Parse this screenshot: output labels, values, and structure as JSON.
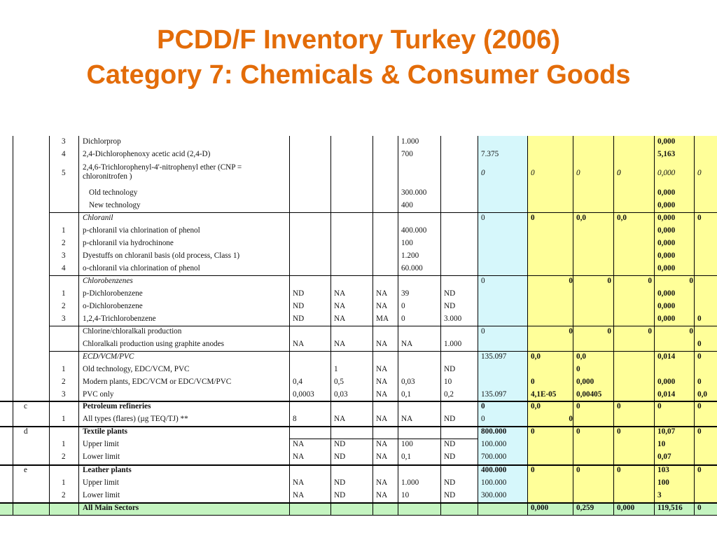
{
  "title_line1": "PCDD/F Inventory Turkey (2006)",
  "title_line2": "Category 7: Chemicals & Consumer Goods",
  "colors": {
    "title": "#E36C09",
    "cyan": "#D6F7FB",
    "yellow": "#FFFF99",
    "green": "#C4F4C0"
  },
  "rows": [
    [
      {
        "c": "sub",
        "t": "3"
      },
      {
        "c": "name",
        "t": "Dichlorprop"
      },
      {
        "c": "p4",
        "t": "1.000"
      },
      {
        "c": "e4",
        "t": "0,000",
        "b": 1
      }
    ],
    [
      {
        "c": "sub",
        "t": "4"
      },
      {
        "c": "name",
        "t": "2,4-Dichlorophenoxy acetic acid  (2,4-D)"
      },
      {
        "c": "p4",
        "t": "700"
      },
      {
        "c": "total",
        "t": "7.375"
      },
      {
        "c": "e4",
        "t": "5,163",
        "b": 1
      }
    ],
    [
      {
        "c": "sub",
        "t": "5"
      },
      {
        "c": "name",
        "t": "2,4,6-Trichlorophenyl-4'-nitrophenyl ether (CNP = chloronitrofen )",
        "wrap": 1
      },
      {
        "c": "total",
        "t": "0",
        "i": 1
      },
      {
        "c": "e1",
        "t": "0",
        "i": 1
      },
      {
        "c": "e2",
        "t": "0",
        "i": 1
      },
      {
        "c": "e3",
        "t": "0",
        "i": 1
      },
      {
        "c": "e3b",
        "t": "0",
        "i": 1
      },
      {
        "c": "e4",
        "t": "0,000",
        "i": 1
      },
      {
        "c": "e5",
        "t": "0",
        "i": 1
      }
    ],
    [
      {
        "c": "name",
        "t": "   Old technology",
        "indent": 1
      },
      {
        "c": "p4",
        "t": "300.000"
      },
      {
        "c": "e4",
        "t": "0,000",
        "b": 1
      }
    ],
    [
      {
        "c": "name",
        "t": "   New technology",
        "indent": 1
      },
      {
        "c": "p4",
        "t": "400"
      },
      {
        "c": "e4",
        "t": "0,000",
        "b": 1
      }
    ],
    [
      {
        "c": "name",
        "t": "Chloranil",
        "i": 1
      },
      {
        "c": "total",
        "t": "0"
      },
      {
        "c": "e1",
        "t": "0",
        "b": 1
      },
      {
        "c": "e2",
        "t": "0,0",
        "b": 1
      },
      {
        "c": "e3",
        "t": "0,0",
        "b": 1
      },
      {
        "c": "e4",
        "t": "0,000",
        "b": 1
      },
      {
        "c": "e5",
        "t": "0",
        "b": 1
      }
    ],
    [
      {
        "c": "sub",
        "t": "1"
      },
      {
        "c": "name",
        "t": "p-chloranil via chlorination of phenol"
      },
      {
        "c": "p4",
        "t": "400.000"
      },
      {
        "c": "e4",
        "t": "0,000",
        "b": 1
      }
    ],
    [
      {
        "c": "sub",
        "t": "2"
      },
      {
        "c": "name",
        "t": "p-chloranil via hydrochinone"
      },
      {
        "c": "p4",
        "t": "100"
      },
      {
        "c": "e4",
        "t": "0,000",
        "b": 1
      }
    ],
    [
      {
        "c": "sub",
        "t": "3"
      },
      {
        "c": "name",
        "t": "Dyestuffs on chloranil basis (old process, Class 1)"
      },
      {
        "c": "p4",
        "t": "1.200"
      },
      {
        "c": "e4",
        "t": "0,000",
        "b": 1
      }
    ],
    [
      {
        "c": "sub",
        "t": "4"
      },
      {
        "c": "name",
        "t": "o-chloranil via chlorination of phenol"
      },
      {
        "c": "p4",
        "t": "60.000"
      },
      {
        "c": "e4",
        "t": "0,000",
        "b": 1
      }
    ],
    [
      {
        "c": "name",
        "t": "Chlorobenzenes",
        "i": 1
      },
      {
        "c": "total",
        "t": "0"
      },
      {
        "c": "e1r",
        "t": "0",
        "b": 1
      },
      {
        "c": "e2r",
        "t": "0",
        "b": 1
      },
      {
        "c": "e3r",
        "t": "0",
        "b": 1
      },
      {
        "c": "e4r",
        "t": "0",
        "b": 1
      }
    ],
    [
      {
        "c": "sub",
        "t": "1"
      },
      {
        "c": "name",
        "t": "p-Dichlorobenzene"
      },
      {
        "c": "p1",
        "t": "ND"
      },
      {
        "c": "p2",
        "t": "NA"
      },
      {
        "c": "p3",
        "t": "NA"
      },
      {
        "c": "p4",
        "t": "39"
      },
      {
        "c": "p5",
        "t": "ND"
      },
      {
        "c": "e4",
        "t": "0,000",
        "b": 1
      }
    ],
    [
      {
        "c": "sub",
        "t": "2"
      },
      {
        "c": "name",
        "t": "o-Dichlorobenzene"
      },
      {
        "c": "p1",
        "t": "ND"
      },
      {
        "c": "p2",
        "t": "NA"
      },
      {
        "c": "p3",
        "t": "NA"
      },
      {
        "c": "p4",
        "t": "0"
      },
      {
        "c": "p5",
        "t": "ND"
      },
      {
        "c": "e4",
        "t": "0,000",
        "b": 1
      }
    ],
    [
      {
        "c": "sub",
        "t": "3"
      },
      {
        "c": "name",
        "t": "1,2,4-Trichlorobenzene"
      },
      {
        "c": "p1",
        "t": "ND"
      },
      {
        "c": "p2",
        "t": "NA"
      },
      {
        "c": "p3",
        "t": "MA"
      },
      {
        "c": "p4",
        "t": "0"
      },
      {
        "c": "p5",
        "t": "3.000"
      },
      {
        "c": "e4",
        "t": "0,000",
        "b": 1
      },
      {
        "c": "e5",
        "t": "0",
        "b": 1
      }
    ],
    [
      {
        "c": "name",
        "t": "Chlorine/chloralkali production"
      },
      {
        "c": "total",
        "t": "0"
      },
      {
        "c": "e1r",
        "t": "0",
        "b": 1
      },
      {
        "c": "e2r",
        "t": "0",
        "b": 1
      },
      {
        "c": "e3r",
        "t": "0",
        "b": 1
      },
      {
        "c": "e4r",
        "t": "0",
        "b": 1
      }
    ],
    [
      {
        "c": "name",
        "t": "Chloralkali production using graphite anodes"
      },
      {
        "c": "p1",
        "t": "NA"
      },
      {
        "c": "p2",
        "t": "NA"
      },
      {
        "c": "p3",
        "t": "NA"
      },
      {
        "c": "p4",
        "t": "NA"
      },
      {
        "c": "p5",
        "t": "1.000"
      },
      {
        "c": "e5",
        "t": "0",
        "b": 1
      }
    ],
    [
      {
        "c": "name",
        "t": "ECD/VCM/PVC",
        "i": 1
      },
      {
        "c": "total",
        "t": "135.097"
      },
      {
        "c": "e1",
        "t": "0,0",
        "b": 1
      },
      {
        "c": "e2",
        "t": "0,0",
        "b": 1
      },
      {
        "c": "e4",
        "t": "0,014",
        "b": 1
      },
      {
        "c": "e5",
        "t": "0",
        "b": 1
      }
    ],
    [
      {
        "c": "sub",
        "t": "1"
      },
      {
        "c": "name",
        "t": "Old technology, EDC/VCM, PVC"
      },
      {
        "c": "p2",
        "t": "1"
      },
      {
        "c": "p3",
        "t": "NA"
      },
      {
        "c": "p5",
        "t": "ND"
      },
      {
        "c": "e2",
        "t": "0",
        "b": 1
      }
    ],
    [
      {
        "c": "sub",
        "t": "2"
      },
      {
        "c": "name",
        "t": "Modern plants, EDC/VCM or EDC/VCM/PVC"
      },
      {
        "c": "p1",
        "t": "0,4"
      },
      {
        "c": "p2",
        "t": "0,5"
      },
      {
        "c": "p3",
        "t": "NA"
      },
      {
        "c": "p4",
        "t": "0,03"
      },
      {
        "c": "p5",
        "t": "10"
      },
      {
        "c": "e1",
        "t": "0",
        "b": 1
      },
      {
        "c": "e2",
        "t": "0,000",
        "b": 1
      },
      {
        "c": "e4",
        "t": "0,000",
        "b": 1
      },
      {
        "c": "e5",
        "t": "0",
        "b": 1
      }
    ],
    [
      {
        "c": "sub",
        "t": "3"
      },
      {
        "c": "name",
        "t": "PVC only"
      },
      {
        "c": "p1",
        "t": "0,0003"
      },
      {
        "c": "p2",
        "t": "0,03"
      },
      {
        "c": "p3",
        "t": "NA"
      },
      {
        "c": "p4",
        "t": "0,1"
      },
      {
        "c": "p5",
        "t": "0,2"
      },
      {
        "c": "total",
        "t": "135.097"
      },
      {
        "c": "e1",
        "t": "4,1E-05",
        "b": 1
      },
      {
        "c": "e2",
        "t": "0,00405",
        "b": 1
      },
      {
        "c": "e4",
        "t": "0,014",
        "b": 1
      },
      {
        "c": "e5",
        "t": "0,0",
        "b": 1
      }
    ],
    [
      {
        "c": "cat",
        "t": "c"
      },
      {
        "c": "name",
        "t": "Petroleum refineries",
        "b": 1
      },
      {
        "c": "total",
        "t": "0",
        "b": 1
      },
      {
        "c": "e1",
        "t": "0,0",
        "b": 1
      },
      {
        "c": "e2",
        "t": "0",
        "b": 1
      },
      {
        "c": "e3",
        "t": "0",
        "b": 1
      },
      {
        "c": "e4",
        "t": "0",
        "b": 1
      },
      {
        "c": "e5",
        "t": "0",
        "b": 1
      }
    ],
    [
      {
        "c": "sub",
        "t": "1"
      },
      {
        "c": "name",
        "t": "All types (flares) (µg TEQ/TJ) **"
      },
      {
        "c": "p1",
        "t": "8"
      },
      {
        "c": "p2",
        "t": "NA"
      },
      {
        "c": "p3",
        "t": "NA"
      },
      {
        "c": "p4",
        "t": "NA"
      },
      {
        "c": "p5",
        "t": "ND"
      },
      {
        "c": "total",
        "t": "0"
      },
      {
        "c": "e1r",
        "t": "0",
        "b": 1
      }
    ],
    [
      {
        "c": "cat",
        "t": "d"
      },
      {
        "c": "name",
        "t": "Textile plants",
        "b": 1
      },
      {
        "c": "total",
        "t": "800.000",
        "b": 1
      },
      {
        "c": "e1",
        "t": "0",
        "b": 1
      },
      {
        "c": "e2",
        "t": "0",
        "b": 1
      },
      {
        "c": "e3",
        "t": "0",
        "b": 1
      },
      {
        "c": "e4",
        "t": "10,07",
        "b": 1
      },
      {
        "c": "e5",
        "t": "0",
        "b": 1
      }
    ],
    [
      {
        "c": "sub",
        "t": "1"
      },
      {
        "c": "name",
        "t": "Upper limit"
      },
      {
        "c": "p1",
        "t": "NA"
      },
      {
        "c": "p2",
        "t": "ND"
      },
      {
        "c": "p3",
        "t": "NA"
      },
      {
        "c": "p4",
        "t": "100"
      },
      {
        "c": "p5",
        "t": "ND"
      },
      {
        "c": "total",
        "t": "100.000"
      },
      {
        "c": "e4",
        "t": "10",
        "b": 1
      }
    ],
    [
      {
        "c": "sub",
        "t": "2"
      },
      {
        "c": "name",
        "t": "Lower limit"
      },
      {
        "c": "p1",
        "t": "NA"
      },
      {
        "c": "p2",
        "t": "ND"
      },
      {
        "c": "p3",
        "t": "NA"
      },
      {
        "c": "p4",
        "t": "0,1"
      },
      {
        "c": "p5",
        "t": "ND"
      },
      {
        "c": "total",
        "t": "700.000"
      },
      {
        "c": "e4",
        "t": "0,07",
        "b": 1
      }
    ],
    [
      {
        "c": "cat",
        "t": "e"
      },
      {
        "c": "name",
        "t": "Leather plants",
        "b": 1
      },
      {
        "c": "total",
        "t": "400.000",
        "b": 1
      },
      {
        "c": "e1",
        "t": "0",
        "b": 1
      },
      {
        "c": "e2",
        "t": "0",
        "b": 1
      },
      {
        "c": "e3",
        "t": "0",
        "b": 1
      },
      {
        "c": "e4",
        "t": "103",
        "b": 1
      },
      {
        "c": "e5",
        "t": "0",
        "b": 1
      }
    ],
    [
      {
        "c": "sub",
        "t": "1"
      },
      {
        "c": "name",
        "t": "Upper limit"
      },
      {
        "c": "p1",
        "t": "NA"
      },
      {
        "c": "p2",
        "t": "ND"
      },
      {
        "c": "p3",
        "t": "NA"
      },
      {
        "c": "p4",
        "t": "1.000"
      },
      {
        "c": "p5",
        "t": "ND"
      },
      {
        "c": "total",
        "t": "100.000"
      },
      {
        "c": "e4",
        "t": "100",
        "b": 1
      }
    ],
    [
      {
        "c": "sub",
        "t": "2"
      },
      {
        "c": "name",
        "t": "Lower limit"
      },
      {
        "c": "p1",
        "t": "NA"
      },
      {
        "c": "p2",
        "t": "ND"
      },
      {
        "c": "p3",
        "t": "NA"
      },
      {
        "c": "p4",
        "t": "10"
      },
      {
        "c": "p5",
        "t": "ND"
      },
      {
        "c": "total",
        "t": "300.000"
      },
      {
        "c": "e4",
        "t": "3",
        "b": 1
      }
    ],
    [
      {
        "c": "name",
        "t": "All Main Sectors",
        "b": 1
      },
      {
        "c": "e1",
        "t": "0,000",
        "b": 1
      },
      {
        "c": "e2",
        "t": "0,259",
        "b": 1
      },
      {
        "c": "e3",
        "t": "0,000",
        "b": 1
      },
      {
        "c": "e4",
        "t": "119,516",
        "b": 1
      },
      {
        "c": "e5",
        "t": "0",
        "b": 1
      }
    ]
  ]
}
